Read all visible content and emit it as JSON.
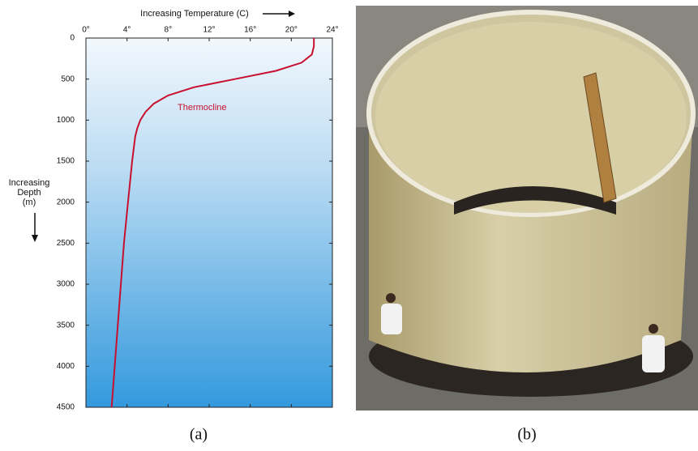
{
  "chart_data": {
    "type": "line",
    "x_label": "Increasing Temperature (C)",
    "y_label": [
      "Increasing",
      "Depth",
      "(m)"
    ],
    "annotation": "Thermocline",
    "color": "#c8102e",
    "xlim": [
      0,
      24
    ],
    "xticks": [
      {
        "value": 0,
        "label": "0°"
      },
      {
        "value": 4,
        "label": "4°"
      },
      {
        "value": 8,
        "label": "8°"
      },
      {
        "value": 12,
        "label": "12°"
      },
      {
        "value": 16,
        "label": "16°"
      },
      {
        "value": 20,
        "label": "20°"
      },
      {
        "value": 24,
        "label": "24°"
      }
    ],
    "ylim": [
      0,
      4500
    ],
    "y_reversed": true,
    "yticks": [
      0,
      500,
      1000,
      1500,
      2000,
      2500,
      3000,
      3500,
      4000,
      4500
    ],
    "depths": [
      0,
      100,
      200,
      300,
      400,
      500,
      600,
      700,
      800,
      900,
      1000,
      1100,
      1200,
      1500,
      2000,
      2500,
      3000,
      3500,
      4000,
      4500
    ],
    "values": [
      22.2,
      22.2,
      22.0,
      21.0,
      18.5,
      14.5,
      10.5,
      8.0,
      6.6,
      5.8,
      5.3,
      5.0,
      4.8,
      4.5,
      4.1,
      3.7,
      3.4,
      3.1,
      2.8,
      2.5
    ]
  },
  "captions": [
    "(a)",
    "(b)"
  ]
}
